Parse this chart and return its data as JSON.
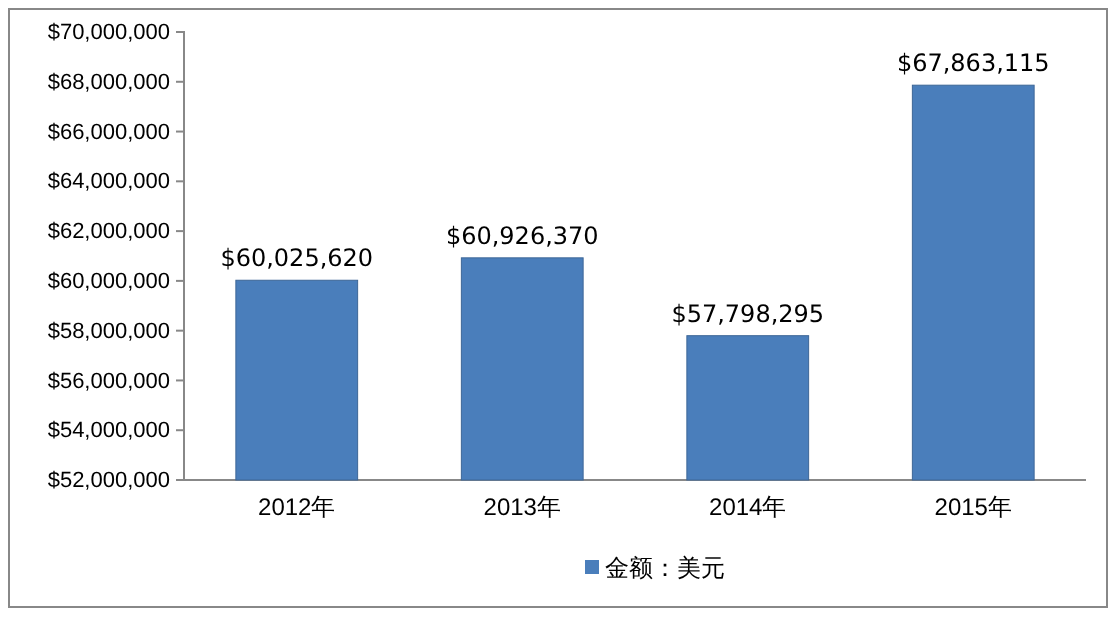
{
  "chart_data": {
    "type": "bar",
    "categories": [
      "2012年",
      "2013年",
      "2014年",
      "2015年"
    ],
    "series": [
      {
        "name": "金额：美元",
        "color": "#4a7ebb",
        "values": [
          60025620,
          60926370,
          57798295,
          67863115
        ],
        "value_labels": [
          "$60,025,620",
          "$60,926,370",
          "$57,798,295",
          "$67,863,115"
        ]
      }
    ],
    "ylim": [
      52000000,
      70000000
    ],
    "yticks": [
      {
        "value": 52000000,
        "label": "$52,000,000"
      },
      {
        "value": 54000000,
        "label": "$54,000,000"
      },
      {
        "value": 56000000,
        "label": "$56,000,000"
      },
      {
        "value": 58000000,
        "label": "$58,000,000"
      },
      {
        "value": 60000000,
        "label": "$60,000,000"
      },
      {
        "value": 62000000,
        "label": "$62,000,000"
      },
      {
        "value": 64000000,
        "label": "$64,000,000"
      },
      {
        "value": 66000000,
        "label": "$66,000,000"
      },
      {
        "value": 68000000,
        "label": "$68,000,000"
      },
      {
        "value": 70000000,
        "label": "$70,000,000"
      }
    ],
    "grid": false,
    "legend": "bottom"
  }
}
